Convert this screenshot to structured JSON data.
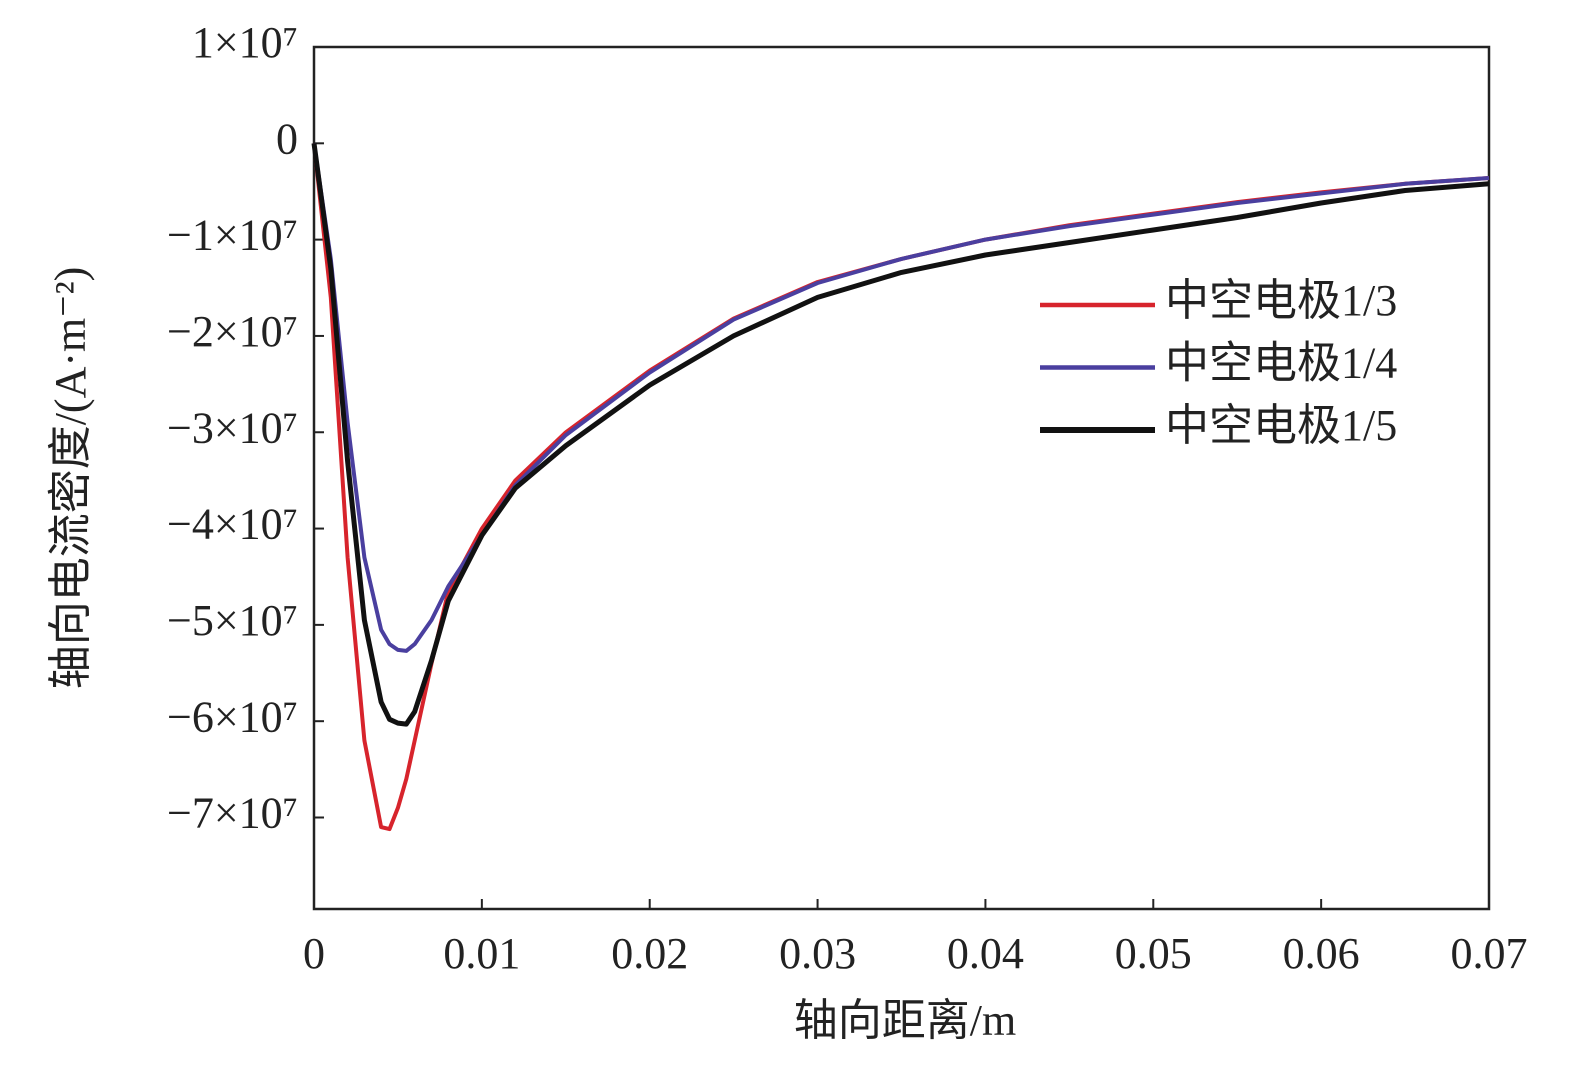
{
  "chart_data": {
    "type": "line",
    "xlabel": "轴向距离/m",
    "ylabel": "轴向电流密度/(A·m⁻²)",
    "x": [
      0,
      0.001,
      0.002,
      0.003,
      0.004,
      0.0045,
      0.005,
      0.0055,
      0.006,
      0.007,
      0.008,
      0.01,
      0.012,
      0.015,
      0.02,
      0.025,
      0.03,
      0.035,
      0.04,
      0.045,
      0.05,
      0.055,
      0.06,
      0.065,
      0.07
    ],
    "series": [
      {
        "name": "中空电极1/3",
        "color": "#d7242c",
        "values": [
          0,
          -16000000,
          -43000000,
          -62000000,
          -71000000,
          -71200000,
          -69000000,
          -66000000,
          -62000000,
          -54000000,
          -46500000,
          -40000000,
          -35000000,
          -30000000,
          -23600000,
          -18200000,
          -14400000,
          -12000000,
          -10000000,
          -8500000,
          -7300000,
          -6100000,
          -5100000,
          -4200000,
          -3600000
        ]
      },
      {
        "name": "中空电极1/4",
        "color": "#4a3f9f",
        "values": [
          0,
          -12000000,
          -29000000,
          -43000000,
          -50500000,
          -52000000,
          -52600000,
          -52700000,
          -52000000,
          -49500000,
          -46000000,
          -40700000,
          -35500000,
          -30300000,
          -23800000,
          -18300000,
          -14500000,
          -12000000,
          -10000000,
          -8600000,
          -7400000,
          -6200000,
          -5200000,
          -4200000,
          -3600000
        ]
      },
      {
        "name": "中空电极1/5",
        "color": "#111111",
        "values": [
          0,
          -13000000,
          -33000000,
          -49500000,
          -58000000,
          -59800000,
          -60200000,
          -60300000,
          -59000000,
          -53700000,
          -47500000,
          -40700000,
          -35800000,
          -31400000,
          -25100000,
          -20000000,
          -16000000,
          -13400000,
          -11600000,
          -10300000,
          -9000000,
          -7700000,
          -6200000,
          -4900000,
          -4200000
        ]
      }
    ],
    "xlim": [
      0,
      0.07
    ],
    "xticks": [
      0,
      0.01,
      0.02,
      0.03,
      0.04,
      0.05,
      0.06,
      0.07
    ],
    "ylim": [
      -79500000,
      10000000
    ],
    "yticks": [
      {
        "value": 10000000,
        "label": "1×10⁷"
      },
      0,
      {
        "value": -10000000,
        "label": "−1×10⁷"
      },
      {
        "value": -20000000,
        "label": "−2×10⁷"
      },
      {
        "value": -30000000,
        "label": "−3×10⁷"
      },
      {
        "value": -40000000,
        "label": "−4×10⁷"
      },
      {
        "value": -50000000,
        "label": "−5×10⁷"
      },
      {
        "value": -60000000,
        "label": "−6×10⁷"
      },
      {
        "value": -70000000,
        "label": "−7×10⁷"
      }
    ],
    "legend": "upper right"
  }
}
